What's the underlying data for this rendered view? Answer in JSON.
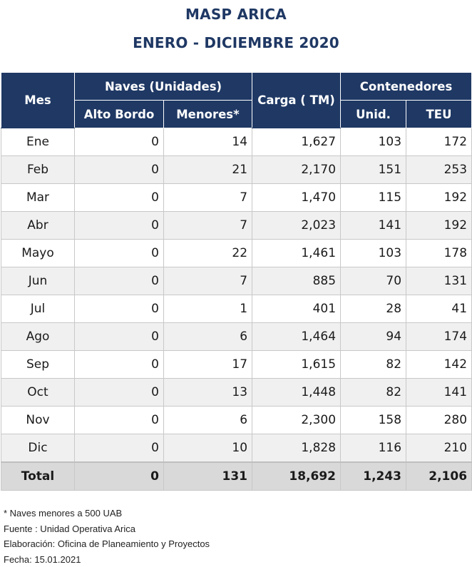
{
  "title": {
    "line1": "MASP ARICA",
    "line2": "ENERO - DICIEMBRE 2020"
  },
  "table": {
    "headers": {
      "mes": "Mes",
      "naves_group": "Naves (Unidades)",
      "alto_bordo": "Alto Bordo",
      "menores": "Menores*",
      "carga": "Carga ( TM)",
      "contenedores_group": "Contenedores",
      "unid": "Unid.",
      "teu": "TEU"
    },
    "rows": [
      {
        "mes": "Ene",
        "alto_bordo": "0",
        "menores": "14",
        "carga": "1,627",
        "unid": "103",
        "teu": "172"
      },
      {
        "mes": "Feb",
        "alto_bordo": "0",
        "menores": "21",
        "carga": "2,170",
        "unid": "151",
        "teu": "253"
      },
      {
        "mes": "Mar",
        "alto_bordo": "0",
        "menores": "7",
        "carga": "1,470",
        "unid": "115",
        "teu": "192"
      },
      {
        "mes": "Abr",
        "alto_bordo": "0",
        "menores": "7",
        "carga": "2,023",
        "unid": "141",
        "teu": "192"
      },
      {
        "mes": "Mayo",
        "alto_bordo": "0",
        "menores": "22",
        "carga": "1,461",
        "unid": "103",
        "teu": "178"
      },
      {
        "mes": "Jun",
        "alto_bordo": "0",
        "menores": "7",
        "carga": "885",
        "unid": "70",
        "teu": "131"
      },
      {
        "mes": "Jul",
        "alto_bordo": "0",
        "menores": "1",
        "carga": "401",
        "unid": "28",
        "teu": "41"
      },
      {
        "mes": "Ago",
        "alto_bordo": "0",
        "menores": "6",
        "carga": "1,464",
        "unid": "94",
        "teu": "174"
      },
      {
        "mes": "Sep",
        "alto_bordo": "0",
        "menores": "17",
        "carga": "1,615",
        "unid": "82",
        "teu": "142"
      },
      {
        "mes": "Oct",
        "alto_bordo": "0",
        "menores": "13",
        "carga": "1,448",
        "unid": "82",
        "teu": "141"
      },
      {
        "mes": "Nov",
        "alto_bordo": "0",
        "menores": "6",
        "carga": "2,300",
        "unid": "158",
        "teu": "280"
      },
      {
        "mes": "Dic",
        "alto_bordo": "0",
        "menores": "10",
        "carga": "1,828",
        "unid": "116",
        "teu": "210"
      }
    ],
    "total": {
      "mes": "Total",
      "alto_bordo": "0",
      "menores": "131",
      "carga": "18,692",
      "unid": "1,243",
      "teu": "2,106"
    }
  },
  "notes": {
    "footnote": "* Naves menores a 500 UAB",
    "fuente": "Fuente : Unidad Operativa Arica",
    "elaboracion": "Elaboración: Oficina de Planeamiento y Proyectos",
    "fecha": "Fecha: 15.01.2021"
  },
  "colors": {
    "header_bg": "#1f3864",
    "title_text": "#1f3864",
    "total_bg": "#d9d9d9",
    "stripe_bg": "#f0f0f0"
  }
}
